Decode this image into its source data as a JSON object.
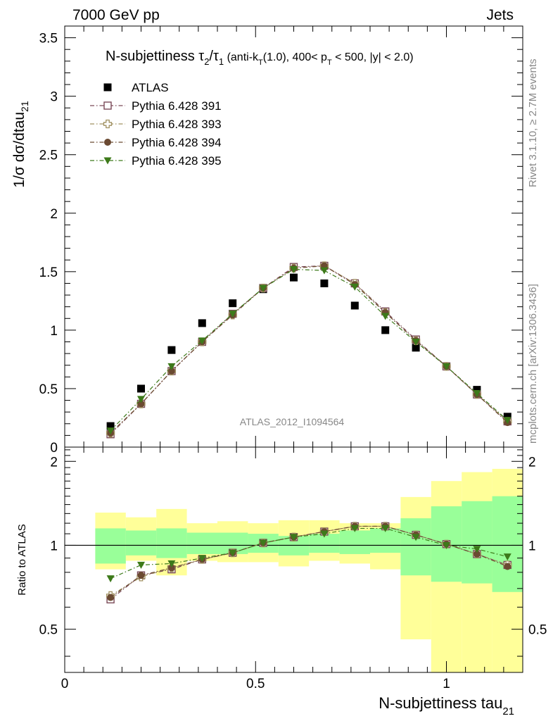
{
  "header": {
    "left": "7000 GeV pp",
    "right": "Jets"
  },
  "side_labels": {
    "rivet": "Rivet 3.1.10, ≥ 2.7M events",
    "mcplots": "mcplots.cern.ch [arXiv:1306.3436]"
  },
  "chart_data": [
    {
      "type": "scatter",
      "panel": "main",
      "title": "N-subjettiness τ₂/τ₁ (anti-k_T(1.0), 400< p_T < 500, |y| < 2.0)",
      "title_parts": {
        "name": "N-subjettiness ",
        "tau": "τ",
        "sub2": "2",
        "slash": "/",
        "sub1": "1",
        "paren_open": " (anti-k",
        "subT": "T",
        "mid": "(1.0), 400< p",
        "subT2": "T",
        "tail": " < 500, |y| < 2.0)"
      },
      "ylabel": "1/σ dσ/dtau",
      "ylabel_sub": "21",
      "analysis_label": "ATLAS_2012_I1094564",
      "xlim": [
        0,
        1.2
      ],
      "ylim": [
        0,
        3.6
      ],
      "y_ticks": [
        0,
        0.5,
        1,
        1.5,
        2,
        2.5,
        3,
        3.5
      ],
      "y_tick_labels": [
        "0",
        "0.5",
        "1",
        "1.5",
        "2",
        "2.5",
        "3",
        "3.5"
      ],
      "x": [
        0.12,
        0.2,
        0.28,
        0.36,
        0.44,
        0.52,
        0.6,
        0.68,
        0.76,
        0.84,
        0.92,
        1.0,
        1.08,
        1.16
      ],
      "series": [
        {
          "name": "ATLAS",
          "color": "#000000",
          "marker": "filled-square",
          "line": "none",
          "values": [
            0.18,
            0.5,
            0.83,
            1.06,
            1.23,
            1.35,
            1.45,
            1.4,
            1.21,
            1.0,
            0.85,
            0.69,
            0.49,
            0.26
          ]
        },
        {
          "name": "Pythia 6.428 391",
          "color": "#7a4a58",
          "marker": "open-square",
          "line": "dash-dot",
          "values": [
            0.11,
            0.37,
            0.65,
            0.9,
            1.14,
            1.36,
            1.54,
            1.55,
            1.4,
            1.16,
            0.92,
            0.69,
            0.45,
            0.22
          ]
        },
        {
          "name": "Pythia 6.428 393",
          "color": "#a09060",
          "marker": "open-cross",
          "line": "dash-dot",
          "values": [
            0.12,
            0.37,
            0.65,
            0.9,
            1.13,
            1.36,
            1.53,
            1.55,
            1.4,
            1.15,
            0.91,
            0.69,
            0.45,
            0.22
          ]
        },
        {
          "name": "Pythia 6.428 394",
          "color": "#6b4a32",
          "marker": "filled-circle",
          "line": "dash-dot",
          "values": [
            0.12,
            0.37,
            0.65,
            0.9,
            1.13,
            1.36,
            1.53,
            1.55,
            1.39,
            1.15,
            0.91,
            0.69,
            0.45,
            0.21
          ]
        },
        {
          "name": "Pythia 6.428 395",
          "color": "#3d7a1a",
          "marker": "filled-triangle-down",
          "line": "dash-dot",
          "values": [
            0.14,
            0.41,
            0.69,
            0.91,
            1.14,
            1.36,
            1.52,
            1.51,
            1.37,
            1.12,
            0.9,
            0.69,
            0.46,
            0.23
          ]
        }
      ]
    },
    {
      "type": "scatter",
      "panel": "ratio",
      "ylabel": "Ratio to ATLAS",
      "xlabel": "N-subjettiness tau",
      "xlabel_sub": "21",
      "xlim": [
        0,
        1.2
      ],
      "ylim": [
        0.35,
        2.25
      ],
      "x_ticks": [
        0,
        0.5,
        1
      ],
      "x_tick_labels": [
        "0",
        "0.5",
        "1"
      ],
      "y_ticks": [
        0.5,
        1,
        2
      ],
      "y_tick_labels": [
        "0.5",
        "1",
        "2"
      ],
      "bin_edges": [
        0.08,
        0.16,
        0.24,
        0.32,
        0.4,
        0.48,
        0.56,
        0.64,
        0.72,
        0.8,
        0.88,
        0.96,
        1.04,
        1.12,
        1.2
      ],
      "band_green": [
        [
          0.86,
          1.15
        ],
        [
          0.92,
          1.13
        ],
        [
          0.9,
          1.15
        ],
        [
          0.93,
          1.11
        ],
        [
          0.93,
          1.11
        ],
        [
          0.94,
          1.1
        ],
        [
          0.92,
          1.08
        ],
        [
          0.94,
          1.1
        ],
        [
          0.93,
          1.13
        ],
        [
          0.94,
          1.15
        ],
        [
          0.78,
          1.25
        ],
        [
          0.74,
          1.38
        ],
        [
          0.73,
          1.44
        ],
        [
          0.68,
          1.5
        ]
      ],
      "band_yellow": [
        [
          0.82,
          1.31
        ],
        [
          0.88,
          1.26
        ],
        [
          0.78,
          1.35
        ],
        [
          0.88,
          1.2
        ],
        [
          0.87,
          1.22
        ],
        [
          0.87,
          1.2
        ],
        [
          0.84,
          1.23
        ],
        [
          0.88,
          1.23
        ],
        [
          0.86,
          1.2
        ],
        [
          0.82,
          1.2
        ],
        [
          0.46,
          1.49
        ],
        [
          0.35,
          1.7
        ],
        [
          0.35,
          1.83
        ],
        [
          0.35,
          1.88
        ]
      ],
      "x": [
        0.12,
        0.2,
        0.28,
        0.36,
        0.44,
        0.52,
        0.6,
        0.68,
        0.76,
        0.84,
        0.92,
        1.0,
        1.08,
        1.16
      ],
      "series": [
        {
          "name": "Pythia 6.428 391",
          "color": "#7a4a58",
          "marker": "open-square",
          "values": [
            0.64,
            0.78,
            0.82,
            0.89,
            0.94,
            1.02,
            1.07,
            1.12,
            1.17,
            1.17,
            1.09,
            1.01,
            0.93,
            0.85
          ]
        },
        {
          "name": "Pythia 6.428 393",
          "color": "#a09060",
          "marker": "open-cross",
          "values": [
            0.66,
            0.77,
            0.83,
            0.89,
            0.94,
            1.02,
            1.07,
            1.12,
            1.17,
            1.17,
            1.09,
            1.01,
            0.93,
            0.85
          ]
        },
        {
          "name": "Pythia 6.428 394",
          "color": "#6b4a32",
          "marker": "filled-circle",
          "values": [
            0.65,
            0.78,
            0.83,
            0.89,
            0.94,
            1.02,
            1.07,
            1.12,
            1.17,
            1.17,
            1.09,
            1.01,
            0.93,
            0.84
          ]
        },
        {
          "name": "Pythia 6.428 395",
          "color": "#3d7a1a",
          "marker": "filled-triangle-down",
          "values": [
            0.76,
            0.85,
            0.86,
            0.9,
            0.94,
            1.02,
            1.07,
            1.1,
            1.15,
            1.15,
            1.07,
            1.0,
            0.97,
            0.91
          ]
        }
      ]
    }
  ]
}
